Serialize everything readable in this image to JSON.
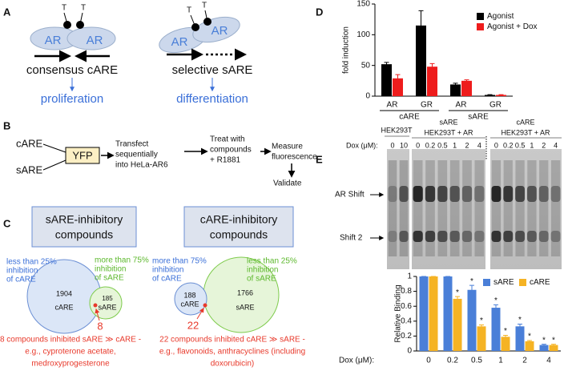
{
  "panel_labels": [
    "A",
    "B",
    "C",
    "D",
    "E"
  ],
  "panel_a": {
    "left": {
      "t": [
        "T",
        "T"
      ],
      "ar": [
        "AR",
        "AR"
      ],
      "label": "consensus cARE",
      "outcome": "proliferation"
    },
    "right": {
      "t": [
        "T",
        "T"
      ],
      "ar": [
        "AR",
        "AR"
      ],
      "label": "selective sARE",
      "outcome": "differentiation"
    }
  },
  "panel_b": {
    "inputs": [
      "cARE",
      "sARE"
    ],
    "reporter": "YFP",
    "steps": [
      [
        "Transfect",
        "sequentially",
        "into HeLa-AR6"
      ],
      [
        "Treat with",
        "compounds",
        "+ R1881"
      ],
      [
        "Measure",
        "fluorescence"
      ]
    ],
    "final": "Validate"
  },
  "panel_c": {
    "venns": [
      {
        "title": [
          "sARE-inhibitory",
          "compounds"
        ],
        "circles": [
          {
            "value": 1904,
            "label": "cARE",
            "note": [
              "less than 25%",
              "inhibition",
              "of cARE"
            ]
          },
          {
            "value": 185,
            "label": "sARE",
            "note": [
              "more than 75%",
              "inhibition",
              "of sARE"
            ]
          }
        ],
        "overlap": 8,
        "caption": [
          "8 compounds inhibited sARE ≫ cARE -",
          "e.g., cyproterone acetate,",
          "medroxyprogesterone"
        ]
      },
      {
        "title": [
          "cARE-inhibitory",
          "compounds"
        ],
        "circles": [
          {
            "value": 188,
            "label": "cARE",
            "note": [
              "more than 75%",
              "inhibition",
              "of cARE"
            ]
          },
          {
            "value": 1766,
            "label": "sARE",
            "note": [
              "less than 25%",
              "inhibition",
              "of sARE"
            ]
          }
        ],
        "overlap": 22,
        "caption": [
          "22 compounds inhibited cARE ≫ sARE -",
          "e.g., flavonoids, anthracyclines (including",
          "doxorubicin)"
        ]
      }
    ]
  },
  "gel_e": {
    "control": {
      "cells": "HEK293T",
      "doses": [
        0,
        10
      ]
    },
    "groups": [
      {
        "name": "sARE",
        "cells": "HEK293T + AR",
        "doses": [
          0,
          0.2,
          0.5,
          1,
          2,
          4
        ]
      },
      {
        "name": "cARE",
        "cells": "HEK293T + AR",
        "doses": [
          0,
          0.2,
          0.5,
          1,
          2,
          4
        ]
      }
    ],
    "dose_label": "Dox (μM):",
    "bands": [
      "AR Shift",
      "Shift 2"
    ]
  },
  "chart_data": [
    {
      "type": "bar",
      "ylabel": "fold induction",
      "categories": [
        "AR",
        "GR",
        "AR",
        "GR"
      ],
      "groups": [
        "cARE",
        "sARE"
      ],
      "series": [
        {
          "name": "Agonist",
          "color": "#000000",
          "values": [
            52,
            115,
            19,
            2
          ],
          "errors": [
            3,
            24,
            2,
            0.5
          ]
        },
        {
          "name": "Agonist + Dox",
          "color": "#ee1c1c",
          "values": [
            29,
            48,
            25,
            2
          ],
          "errors": [
            6,
            5,
            1.5,
            0.5
          ]
        }
      ],
      "ylim": [
        0,
        150
      ],
      "yticks": [
        0,
        50,
        100,
        150
      ],
      "legend": "upper right"
    },
    {
      "type": "bar",
      "ylabel": "Relative Binding",
      "xlabel": "Dox (μM):",
      "categories": [
        "0",
        "0.2",
        "0.5",
        "1",
        "2",
        "4"
      ],
      "series": [
        {
          "name": "sARE",
          "color": "#4a7fd8",
          "values": [
            1,
            1,
            0.82,
            0.58,
            0.33,
            0.08
          ],
          "errors": [
            0,
            0,
            0.06,
            0.04,
            0.03,
            0.01
          ],
          "significance": [
            null,
            null,
            "*",
            "*",
            "*",
            "*"
          ]
        },
        {
          "name": "cARE",
          "color": "#f5b324",
          "values": [
            1,
            0.7,
            0.33,
            0.19,
            0.13,
            0.08
          ],
          "errors": [
            0,
            0.03,
            0.02,
            0.02,
            0.01,
            0.01
          ],
          "significance": [
            null,
            "*",
            "*",
            "*",
            "*",
            "*"
          ]
        }
      ],
      "ylim": [
        0,
        1
      ],
      "yticks": [
        0,
        0.2,
        0.4,
        0.6,
        0.8,
        1
      ],
      "legend": "upper right"
    }
  ]
}
